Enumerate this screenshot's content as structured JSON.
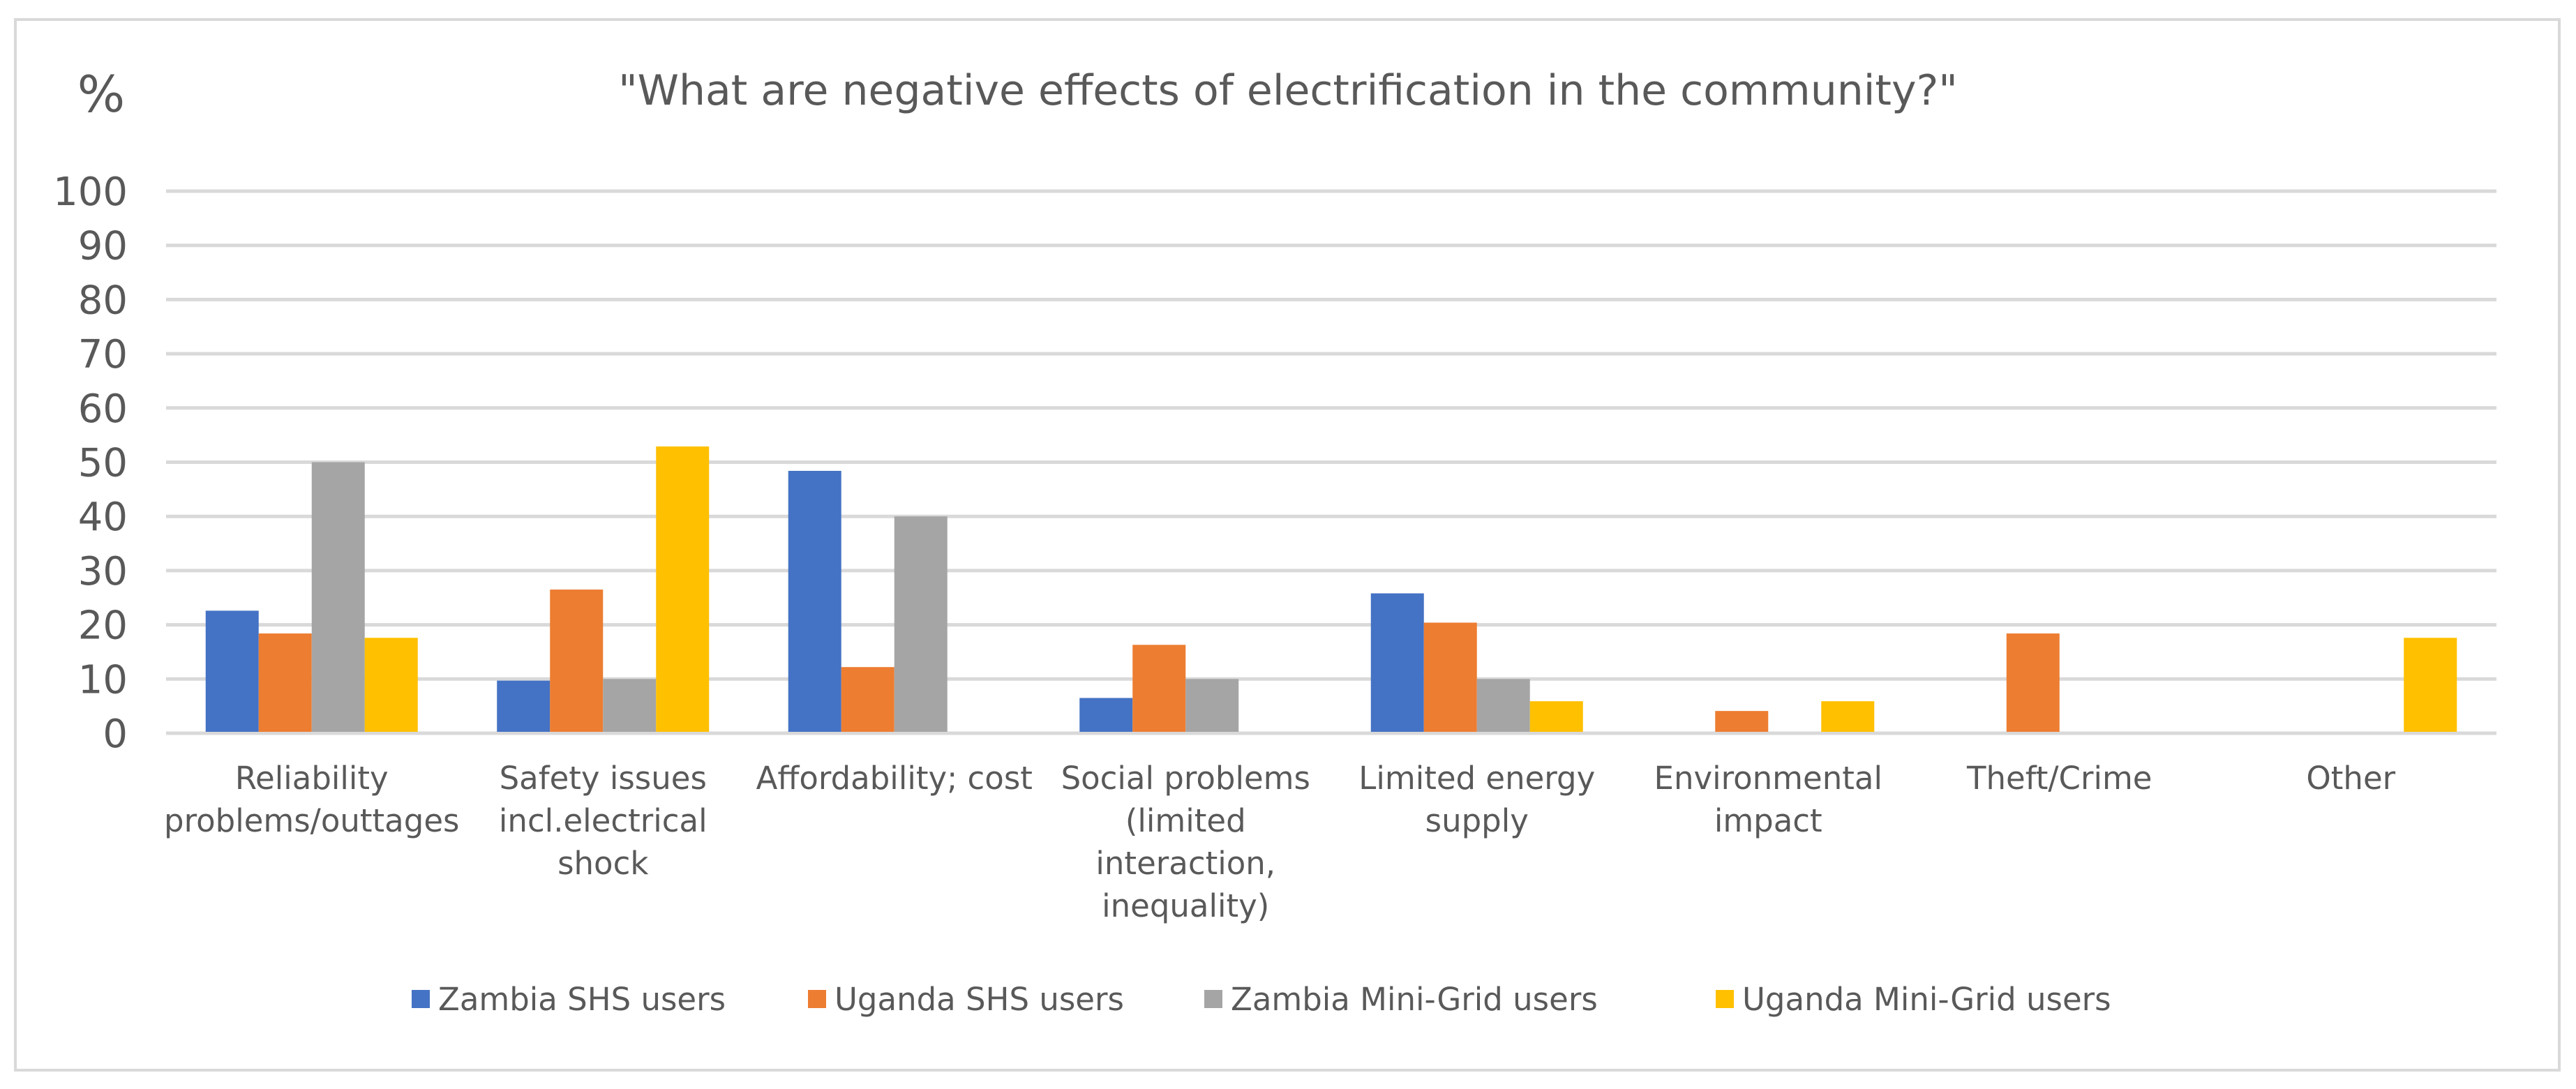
{
  "chart_data": {
    "type": "bar",
    "title": "\"What are negative effects of electrification in the community?\"",
    "ylabel": "%",
    "xlabel": "",
    "ylim": [
      0,
      100
    ],
    "yticks": [
      0,
      10,
      20,
      30,
      40,
      50,
      60,
      70,
      80,
      90,
      100
    ],
    "grid": true,
    "legend_position": "bottom",
    "categories": [
      [
        "Reliability",
        "problems/outtages"
      ],
      [
        "Safety issues",
        "incl.electrical",
        "shock"
      ],
      [
        "Affordability; cost"
      ],
      [
        "Social problems",
        "(limited",
        "interaction,",
        "inequality)"
      ],
      [
        "Limited energy",
        "supply"
      ],
      [
        "Environmental",
        "impact"
      ],
      [
        "Theft/Crime"
      ],
      [
        "Other"
      ]
    ],
    "series": [
      {
        "name": "Zambia SHS users",
        "color": "#4472c4",
        "values": [
          22.6,
          9.7,
          48.4,
          6.5,
          25.8,
          0,
          0,
          0
        ]
      },
      {
        "name": "Uganda SHS users",
        "color": "#ed7d31",
        "values": [
          18.4,
          26.5,
          12.2,
          16.3,
          20.4,
          4.1,
          18.4,
          0
        ]
      },
      {
        "name": "Zambia Mini-Grid users",
        "color": "#a5a5a5",
        "values": [
          50,
          10,
          40,
          10,
          10,
          0,
          0,
          0
        ]
      },
      {
        "name": "Uganda Mini-Grid users",
        "color": "#ffc000",
        "values": [
          17.6,
          52.9,
          0,
          0,
          5.9,
          5.9,
          0,
          17.6
        ]
      }
    ]
  }
}
